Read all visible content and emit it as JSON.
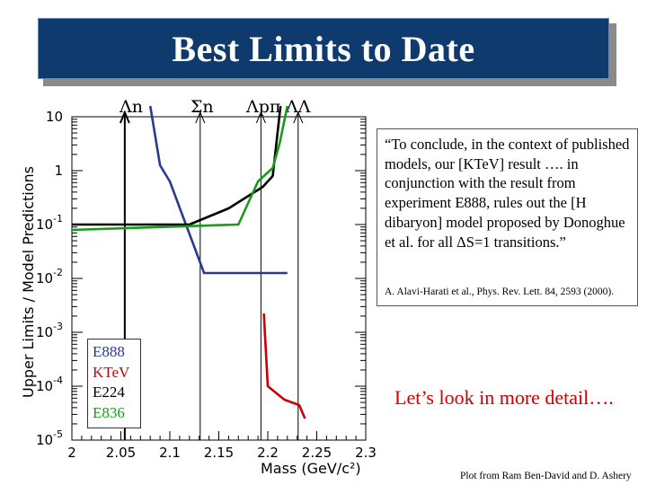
{
  "header": {
    "title": "Best Limits to Date"
  },
  "top_labels": [
    "Λn",
    "Σn",
    "Λpπ",
    "ΛΛ"
  ],
  "quote": {
    "text": "“To conclude, in the context of published models, our [KTeV] result …. in conjunction with the result from experiment E888, rules out the [H dibaryon] model proposed by Donoghue et al. for all ΔS=1 transitions.”",
    "citation": "A. Alavi-Harati et al., Phys. Rev. Lett. 84, 2593 (2000)."
  },
  "legend": {
    "entries": [
      {
        "label": "E888",
        "color": "#2b3a8f"
      },
      {
        "label": "KTeV",
        "color": "#cc0000"
      },
      {
        "label": "E224",
        "color": "#000000"
      },
      {
        "label": "E836",
        "color": "#1a9a1a"
      }
    ]
  },
  "detail_text": "Let’s look in more detail….",
  "credit": "Plot from Ram Ben-David and D. Ashery",
  "chart_data": {
    "type": "line",
    "xlabel": "Mass (GeV/c²)",
    "ylabel": "Upper Limits / Model Predictions",
    "xlim": [
      2.0,
      2.3
    ],
    "ylim_log10": [
      -5,
      1
    ],
    "x_ticks": [
      "2",
      "2.05",
      "2.1",
      "2.15",
      "2.2",
      "2.25",
      "2.3"
    ],
    "y_ticks": [
      {
        "base": "10",
        "exp": "-5",
        "v": -5
      },
      {
        "base": "10",
        "exp": "-4",
        "v": -4
      },
      {
        "base": "10",
        "exp": "-3",
        "v": -3
      },
      {
        "base": "10",
        "exp": "-2",
        "v": -2
      },
      {
        "base": "10",
        "exp": "-1",
        "v": -1
      },
      {
        "base": "1",
        "exp": "",
        "v": 0
      },
      {
        "base": "10",
        "exp": "",
        "v": 1
      }
    ],
    "thresholds": [
      {
        "label": "Λn",
        "x": 2.054
      },
      {
        "label": "Σn",
        "x": 2.131
      },
      {
        "label": "Λpπ",
        "x": 2.193
      },
      {
        "label": "ΛΛ",
        "x": 2.231
      }
    ],
    "series": [
      {
        "name": "E888",
        "color": "#2b3a8f",
        "log10": true,
        "points": [
          [
            2.08,
            1.2
          ],
          [
            2.09,
            0.1
          ],
          [
            2.1,
            -0.2
          ],
          [
            2.135,
            -1.9
          ],
          [
            2.22,
            -1.9
          ]
        ]
      },
      {
        "name": "KTeV",
        "color": "#cc0000",
        "log10": true,
        "points": [
          [
            2.196,
            -2.65
          ],
          [
            2.2,
            -4.0
          ],
          [
            2.217,
            -4.25
          ],
          [
            2.232,
            -4.35
          ],
          [
            2.238,
            -4.6
          ]
        ]
      },
      {
        "name": "E224",
        "color": "#000000",
        "log10": true,
        "points": [
          [
            2.0,
            -1.0
          ],
          [
            2.12,
            -1.0
          ],
          [
            2.16,
            -0.7
          ],
          [
            2.195,
            -0.3
          ],
          [
            2.205,
            -0.1
          ],
          [
            2.213,
            1.2
          ]
        ]
      },
      {
        "name": "E836",
        "color": "#1a9a1a",
        "log10": true,
        "points": [
          [
            2.0,
            -1.1
          ],
          [
            2.17,
            -1.0
          ],
          [
            2.19,
            -0.2
          ],
          [
            2.205,
            0.05
          ],
          [
            2.212,
            0.5
          ],
          [
            2.22,
            1.2
          ]
        ]
      }
    ]
  }
}
